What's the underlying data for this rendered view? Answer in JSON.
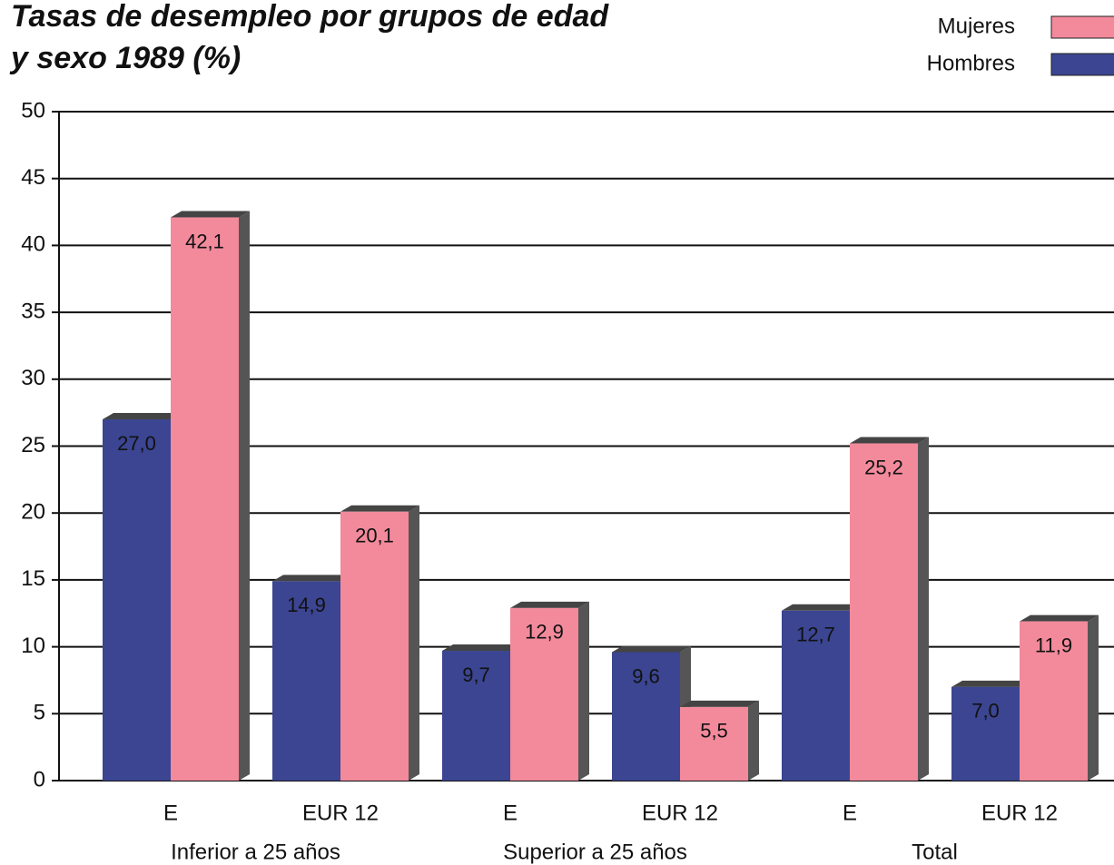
{
  "chart_data": {
    "type": "bar",
    "title": [
      "Tasas de desempleo por grupos de edad",
      "y sexo 1989 (%)"
    ],
    "categories": [
      "E",
      "EUR 12",
      "E",
      "EUR 12",
      "E",
      "EUR 12"
    ],
    "groups": [
      "Inferior a 25 años",
      "Superior a 25 años",
      "Total"
    ],
    "series": [
      {
        "name": "Mujeres",
        "color": "#f28a9c",
        "values": [
          42.1,
          20.1,
          12.9,
          5.5,
          25.2,
          11.9
        ],
        "value_labels": [
          "42,1",
          "20,1",
          "12,9",
          "5,5",
          "25,2",
          "11,9"
        ]
      },
      {
        "name": "Hombres",
        "color": "#3b4591",
        "values": [
          27.0,
          14.9,
          9.7,
          9.6,
          12.7,
          7.0
        ],
        "value_labels": [
          "27,0",
          "14,9",
          "9,7",
          "9,6",
          "12,7",
          "7,0"
        ]
      }
    ],
    "ylim": [
      0,
      50
    ],
    "yticks": [
      0,
      5,
      10,
      15,
      20,
      25,
      30,
      35,
      40,
      45,
      50
    ],
    "grid": true
  }
}
